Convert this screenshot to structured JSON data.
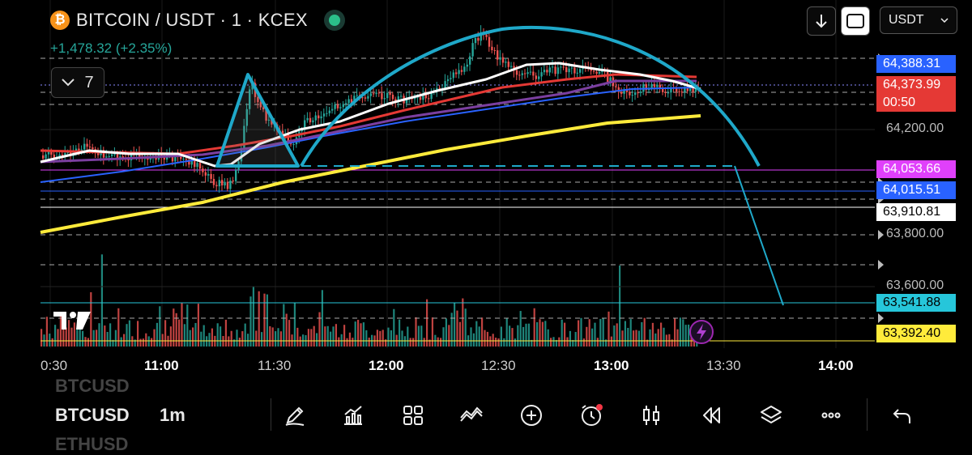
{
  "header": {
    "logo_glyph": "₿",
    "symbol_title": "BITCOIN / USDT · 1 · KCEX",
    "change": "+1,478.32 (+2.35%)",
    "indicators_count": "7"
  },
  "top_controls": {
    "currency": "USDT"
  },
  "price_axis": {
    "labels": [
      {
        "text": "64,388.31",
        "kind": "badge",
        "bg": "#2962ff",
        "fg": "#ffffff"
      },
      {
        "text": "64,373.99",
        "kind": "badge",
        "bg": "#e53935",
        "fg": "#ffffff"
      },
      {
        "text": "00:50",
        "kind": "badge",
        "bg": "#e53935",
        "fg": "#ffffff"
      },
      {
        "text": "64,200.00",
        "kind": "plain"
      },
      {
        "text": "64,053.66",
        "kind": "badge",
        "bg": "#e040fb",
        "fg": "#ffffff"
      },
      {
        "text": "64,015.51",
        "kind": "badge",
        "bg": "#2962ff",
        "fg": "#ffffff"
      },
      {
        "text": "63,910.81",
        "kind": "badge",
        "bg": "#ffffff",
        "fg": "#000000"
      },
      {
        "text": "63,800.00",
        "kind": "plain"
      },
      {
        "text": "63,600.00",
        "kind": "plain"
      },
      {
        "text": "63,541.88",
        "kind": "badge",
        "bg": "#26c6da",
        "fg": "#000000"
      },
      {
        "text": "63,392.40",
        "kind": "badge",
        "bg": "#ffeb3b",
        "fg": "#000000"
      }
    ]
  },
  "time_axis": {
    "labels": [
      "0:30",
      "11:00",
      "11:30",
      "12:00",
      "12:30",
      "13:00",
      "13:30",
      "14:00"
    ]
  },
  "bottom_bar": {
    "symbol_prev": "BTCUSD",
    "symbol": "BTCUSD",
    "symbol_next": "ETHUSD",
    "interval": "1m"
  },
  "icons": [
    "pencil-icon",
    "indicators-icon",
    "grid-icon",
    "trend-line-icon",
    "add-icon",
    "alert-clock-icon",
    "candle-style-icon",
    "replay-icon",
    "layers-icon",
    "more-icon",
    "undo-icon"
  ],
  "colors": {
    "up": "#26a69a",
    "down": "#ef5350",
    "pattern": "#1fa8c9",
    "ema_white": "#ffffff",
    "ema_red": "#e53935",
    "ema_purple": "#7b3fa0",
    "ema_blue": "#2962ff",
    "ema_yellow": "#ffeb3b"
  }
}
